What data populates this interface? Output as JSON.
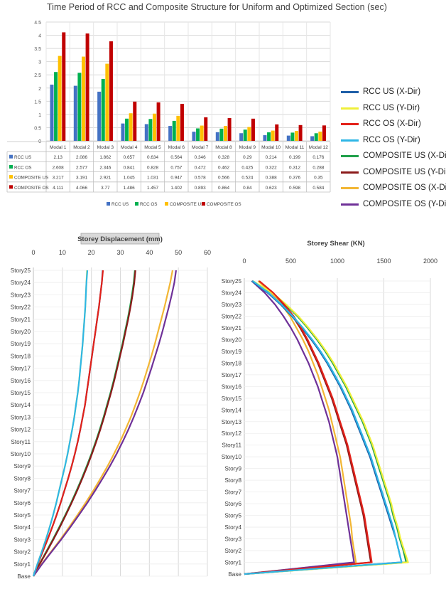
{
  "chart_data": [
    {
      "type": "bar",
      "title": "Time Period of RCC and Composite Structure for Uniform and Optimized Section (sec)",
      "categories": [
        "Modal 1",
        "Modal 2",
        "Modal 3",
        "Modal 4",
        "Modal 5",
        "Modal 6",
        "Modal 7",
        "Modal 8",
        "Modal 9",
        "Modal 10",
        "Modal 11",
        "Modal 12"
      ],
      "series": [
        {
          "name": "RCC US",
          "color": "#4472C4",
          "values": [
            2.13,
            2.086,
            1.862,
            0.657,
            0.634,
            0.564,
            0.346,
            0.328,
            0.29,
            0.214,
            0.199,
            0.176
          ]
        },
        {
          "name": "RCC OS",
          "color": "#00B050",
          "values": [
            2.608,
            2.577,
            2.346,
            0.841,
            0.828,
            0.757,
            0.472,
            0.462,
            0.425,
            0.322,
            0.312,
            0.288
          ]
        },
        {
          "name": "COMPOSITE US",
          "color": "#FFC000",
          "values": [
            3.217,
            3.191,
            2.921,
            1.045,
            1.031,
            0.947,
            0.578,
            0.566,
            0.524,
            0.388,
            0.376,
            0.35
          ]
        },
        {
          "name": "COMPOSITE OS",
          "color": "#C00000",
          "values": [
            4.111,
            4.066,
            3.77,
            1.486,
            1.457,
            1.402,
            0.893,
            0.864,
            0.84,
            0.623,
            0.598,
            0.584
          ]
        }
      ],
      "yticks": [
        "0",
        "0.5",
        "1",
        "1.5",
        "2",
        "2.5",
        "3",
        "3.5",
        "4",
        "4.5"
      ],
      "ylim": [
        0,
        4.5
      ],
      "grid": true,
      "data_table": true,
      "legend_position": "bottom"
    },
    {
      "type": "line",
      "title": "Storey Displacement (mm)",
      "xlim": [
        0,
        60
      ],
      "xticks": [
        "0",
        "10",
        "20",
        "30",
        "40",
        "50",
        "60"
      ],
      "storeys": [
        "Base",
        "Story1",
        "Story2",
        "Story3",
        "Story4",
        "Story5",
        "Story6",
        "Story7",
        "Story8",
        "Story9",
        "Story10",
        "Story11",
        "Story12",
        "Story13",
        "Story14",
        "Story15",
        "Story16",
        "Story17",
        "Story18",
        "Story19",
        "Story20",
        "Story21",
        "Story22",
        "Story23",
        "Story24",
        "Story25"
      ],
      "series": [
        {
          "name": "RCC US (X-Dir)",
          "color": "#1F5FA8",
          "values": [
            0,
            1.5,
            3.2,
            4.9,
            6.5,
            8,
            9.4,
            10.7,
            12,
            13.2,
            14.3,
            15.3,
            16.2,
            17,
            17.8,
            18.4,
            19,
            19.6,
            20.2,
            20.8,
            21.4,
            22,
            22.6,
            23.1,
            23.6,
            23.9
          ]
        },
        {
          "name": "RCC US (Y-Dir)",
          "color": "#EFEF3A",
          "values": [
            0,
            1.4,
            2.9,
            4.3,
            5.6,
            6.8,
            7.9,
            8.9,
            9.9,
            10.9,
            11.8,
            12.6,
            13.4,
            14.1,
            14.7,
            15.3,
            15.8,
            16.2,
            16.6,
            17,
            17.3,
            17.6,
            17.9,
            18.1,
            18.3,
            18.5
          ]
        },
        {
          "name": "RCC OS (X-Dir)",
          "color": "#E32119",
          "values": [
            0,
            1.5,
            3.2,
            4.9,
            6.5,
            8,
            9.4,
            10.7,
            12,
            13.2,
            14.3,
            15.3,
            16.2,
            17,
            17.8,
            18.4,
            19,
            19.6,
            20.2,
            20.8,
            21.4,
            22,
            22.6,
            23.1,
            23.6,
            24
          ]
        },
        {
          "name": "RCC OS (Y-Dir)",
          "color": "#2EB6E6",
          "values": [
            0,
            1.4,
            2.9,
            4.3,
            5.6,
            6.8,
            7.9,
            8.9,
            9.9,
            10.9,
            11.8,
            12.6,
            13.4,
            14.1,
            14.7,
            15.3,
            15.8,
            16.2,
            16.6,
            17,
            17.3,
            17.6,
            17.9,
            18.1,
            18.3,
            18.6
          ]
        },
        {
          "name": "COMPOSITE US (X-Dir)",
          "color": "#1FA04A",
          "values": [
            0,
            2.1,
            4.4,
            6.7,
            8.9,
            11,
            13,
            14.9,
            16.7,
            18.4,
            20,
            21.5,
            22.9,
            24.2,
            25.4,
            26.6,
            27.7,
            28.7,
            29.7,
            30.7,
            31.6,
            32.5,
            33.3,
            34,
            34.6,
            35
          ]
        },
        {
          "name": "COMPOSITE US (Y-Dir)",
          "color": "#8B1A1A",
          "values": [
            0,
            2.2,
            4.6,
            6.9,
            9.1,
            11.2,
            13.2,
            15.1,
            16.9,
            18.6,
            20.2,
            21.7,
            23.1,
            24.4,
            25.6,
            26.8,
            27.9,
            28.9,
            29.9,
            30.9,
            31.8,
            32.7,
            33.5,
            34.2,
            34.8,
            35.2
          ]
        },
        {
          "name": "COMPOSITE OS (X-Dir)",
          "color": "#F2B634",
          "values": [
            0,
            2.9,
            6.1,
            9.3,
            12.3,
            15.2,
            18,
            20.7,
            23.2,
            25.6,
            27.8,
            29.9,
            31.8,
            33.6,
            35.2,
            36.7,
            38.1,
            39.4,
            40.7,
            41.9,
            43,
            44.1,
            45.2,
            46.2,
            47.2,
            48
          ]
        },
        {
          "name": "COMPOSITE OS (Y-Dir)",
          "color": "#6F3198",
          "values": [
            0,
            3,
            6.3,
            9.6,
            12.7,
            15.7,
            18.6,
            21.3,
            23.9,
            26.4,
            28.7,
            30.8,
            32.8,
            34.6,
            36.3,
            37.9,
            39.3,
            40.7,
            42,
            43.3,
            44.5,
            45.6,
            46.7,
            47.7,
            48.6,
            49.2
          ]
        }
      ],
      "grid": true
    },
    {
      "type": "line",
      "title": "Storey Shear (KN)",
      "xlim": [
        0,
        2000
      ],
      "xticks": [
        "0",
        "500",
        "1000",
        "1500",
        "2000"
      ],
      "storeys": [
        "Base",
        "Story1",
        "Story2",
        "Story3",
        "Story4",
        "Story5",
        "Story6",
        "Story7",
        "Story8",
        "Story9",
        "Story10",
        "Story11",
        "Story12",
        "Story13",
        "Story14",
        "Story15",
        "Story16",
        "Story17",
        "Story18",
        "Story19",
        "Story20",
        "Story21",
        "Story22",
        "Story23",
        "Story24",
        "Story25"
      ],
      "series": [
        {
          "name": "RCC US (X-Dir)",
          "color": "#1F5FA8",
          "values": [
            0,
            1690,
            1660,
            1630,
            1590,
            1550,
            1510,
            1470,
            1430,
            1390,
            1350,
            1300,
            1250,
            1200,
            1150,
            1090,
            1030,
            960,
            890,
            810,
            720,
            620,
            510,
            390,
            250,
            80
          ]
        },
        {
          "name": "RCC US (Y-Dir)",
          "color": "#EFEF3A",
          "values": [
            0,
            1760,
            1720,
            1680,
            1650,
            1610,
            1580,
            1540,
            1500,
            1460,
            1420,
            1380,
            1330,
            1280,
            1220,
            1160,
            1100,
            1030,
            960,
            880,
            790,
            690,
            580,
            450,
            300,
            90
          ]
        },
        {
          "name": "RCC OS (X-Dir)",
          "color": "#E32119",
          "values": [
            0,
            1370,
            1350,
            1330,
            1310,
            1290,
            1260,
            1230,
            1200,
            1170,
            1140,
            1110,
            1070,
            1030,
            990,
            950,
            900,
            850,
            800,
            740,
            680,
            610,
            530,
            430,
            310,
            160
          ]
        },
        {
          "name": "RCC OS (Y-Dir)",
          "color": "#2EB6E6",
          "values": [
            0,
            1690,
            1660,
            1630,
            1600,
            1560,
            1520,
            1480,
            1440,
            1400,
            1360,
            1310,
            1260,
            1210,
            1160,
            1100,
            1040,
            970,
            900,
            820,
            730,
            630,
            520,
            400,
            260,
            90
          ]
        },
        {
          "name": "COMPOSITE US (X-Dir)",
          "color": "#1FA04A",
          "values": [
            0,
            1740,
            1710,
            1670,
            1640,
            1600,
            1570,
            1530,
            1490,
            1450,
            1410,
            1370,
            1320,
            1270,
            1210,
            1150,
            1090,
            1020,
            950,
            870,
            780,
            680,
            570,
            440,
            290,
            90
          ]
        },
        {
          "name": "COMPOSITE US (Y-Dir)",
          "color": "#8B1A1A",
          "values": [
            0,
            1360,
            1340,
            1320,
            1300,
            1280,
            1250,
            1220,
            1190,
            1160,
            1130,
            1100,
            1060,
            1020,
            980,
            940,
            890,
            840,
            790,
            730,
            670,
            600,
            520,
            420,
            300,
            150
          ]
        },
        {
          "name": "COMPOSITE OS (X-Dir)",
          "color": "#F2B634",
          "values": [
            0,
            1200,
            1180,
            1160,
            1150,
            1130,
            1110,
            1090,
            1070,
            1050,
            1030,
            1000,
            970,
            940,
            910,
            870,
            830,
            790,
            740,
            690,
            630,
            560,
            490,
            400,
            290,
            150
          ]
        },
        {
          "name": "COMPOSITE OS (Y-Dir)",
          "color": "#6F3198",
          "values": [
            0,
            1180,
            1160,
            1140,
            1120,
            1100,
            1080,
            1060,
            1040,
            1020,
            1000,
            970,
            940,
            910,
            870,
            830,
            790,
            740,
            690,
            630,
            570,
            500,
            420,
            330,
            220,
            80
          ]
        }
      ],
      "grid": true
    }
  ]
}
